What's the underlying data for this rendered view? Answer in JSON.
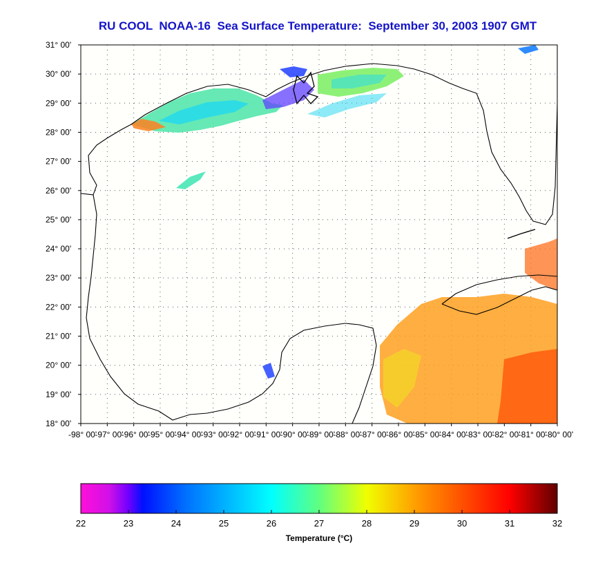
{
  "title": "RU COOL  NOAA-16  Sea Surface Temperature:  September 30, 2003 1907 GMT",
  "map": {
    "lat_ticks": [
      "31",
      "30",
      "29",
      "28",
      "27",
      "26",
      "25",
      "24",
      "23",
      "22",
      "21",
      "20",
      "19",
      "18"
    ],
    "lon_ticks": [
      "-98",
      "-97",
      "-96",
      "-95",
      "-94",
      "-93",
      "-92",
      "-91",
      "-90",
      "-89",
      "-88",
      "-87",
      "-86",
      "-85",
      "-84",
      "-83",
      "-82",
      "-81",
      "-80"
    ],
    "minutes_label": "00'",
    "lat_range": [
      18,
      31
    ],
    "lon_range": [
      -98,
      -80
    ],
    "grid": "dotted"
  },
  "colorbar": {
    "ticks": [
      "22",
      "23",
      "24",
      "25",
      "26",
      "27",
      "28",
      "29",
      "30",
      "31",
      "32"
    ],
    "range": [
      22,
      32
    ],
    "label": "Temperature (°C)",
    "colors": [
      "#ff10d8",
      "#7000ff",
      "#0010ff",
      "#0090ff",
      "#00ffff",
      "#60ff80",
      "#f0ff00",
      "#ffa000",
      "#ff5000",
      "#ff0000",
      "#600000"
    ]
  },
  "colors": {
    "title": "#1414c8",
    "ocean": "#fffffc",
    "land_outline": "#000000"
  }
}
